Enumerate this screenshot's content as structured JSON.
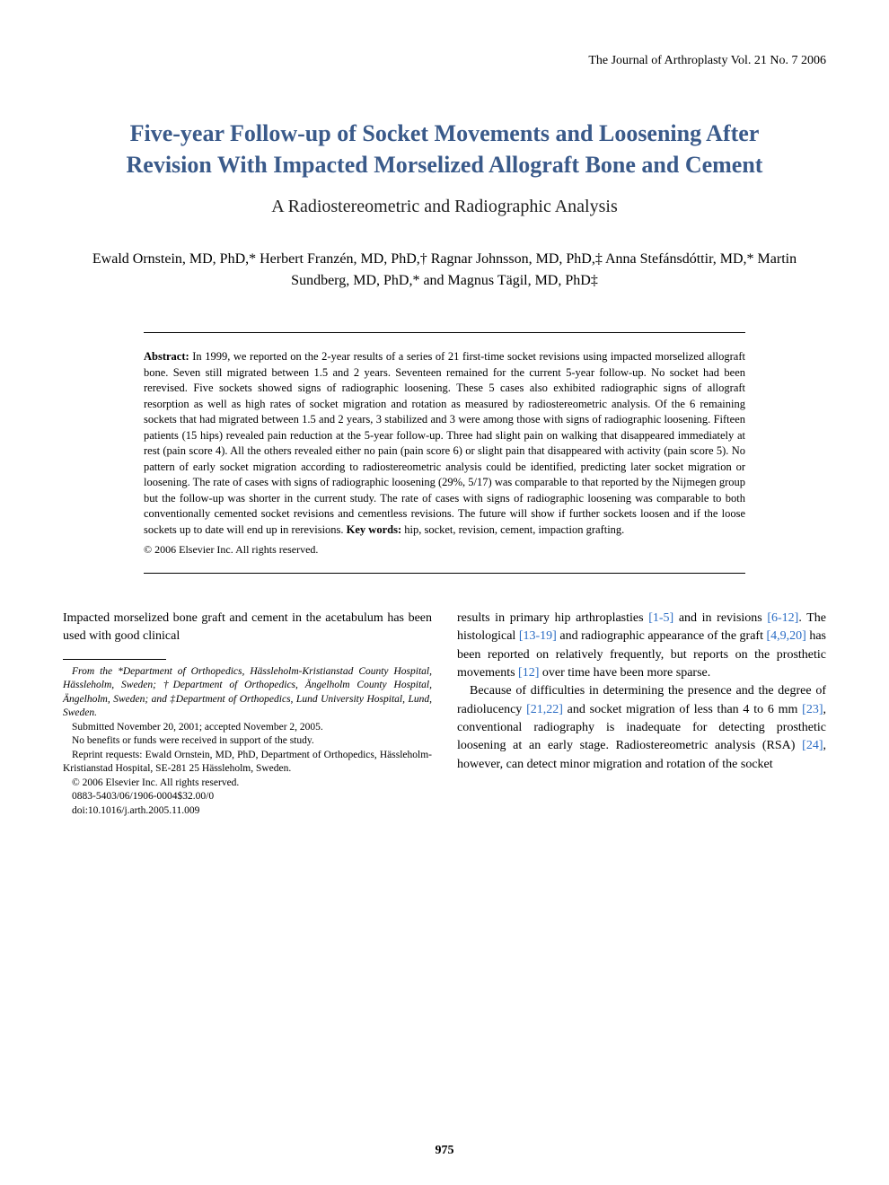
{
  "journal_header": "The Journal of Arthroplasty Vol. 21 No. 7 2006",
  "title": "Five-year Follow-up of Socket Movements and Loosening After Revision With Impacted Morselized Allograft Bone and Cement",
  "subtitle": "A Radiostereometric and Radiographic Analysis",
  "authors": "Ewald Ornstein, MD, PhD,* Herbert Franzén, MD, PhD,† Ragnar Johnsson, MD, PhD,‡ Anna Stefánsdóttir, MD,* Martin Sundberg, MD, PhD,* and Magnus Tägil, MD, PhD‡",
  "abstract_label": "Abstract:",
  "abstract_text": " In 1999, we reported on the 2-year results of a series of 21 first-time socket revisions using impacted morselized allograft bone. Seven still migrated between 1.5 and 2 years. Seventeen remained for the current 5-year follow-up. No socket had been rerevised. Five sockets showed signs of radiographic loosening. These 5 cases also exhibited radiographic signs of allograft resorption as well as high rates of socket migration and rotation as measured by radiostereometric analysis. Of the 6 remaining sockets that had migrated between 1.5 and 2 years, 3 stabilized and 3 were among those with signs of radiographic loosening. Fifteen patients (15 hips) revealed pain reduction at the 5-year follow-up. Three had slight pain on walking that disappeared immediately at rest (pain score 4). All the others revealed either no pain (pain score 6) or slight pain that disappeared with activity (pain score 5). No pattern of early socket migration according to radiostereometric analysis could be identified, predicting later socket migration or loosening. The rate of cases with signs of radiographic loosening (29%, 5/17) was comparable to that reported by the Nijmegen group but the follow-up was shorter in the current study. The rate of cases with signs of radiographic loosening was comparable to both conventionally cemented socket revisions and cementless revisions. The future will show if further sockets loosen and if the loose sockets up to date will end up in rerevisions. ",
  "keywords_label": "Key words:",
  "keywords_text": " hip, socket, revision, cement, impaction grafting.",
  "abstract_copyright": "© 2006 Elsevier Inc. All rights reserved.",
  "body": {
    "left_intro": "Impacted morselized bone graft and cement in the acetabulum has been used with good clinical",
    "right_p1_a": "results in primary hip arthroplasties ",
    "right_p1_ref1": "[1-5]",
    "right_p1_b": " and in revisions ",
    "right_p1_ref2": "[6-12]",
    "right_p1_c": ". The histological ",
    "right_p1_ref3": "[13-19]",
    "right_p1_d": " and radiographic appearance of the graft ",
    "right_p1_ref4": "[4,9,20]",
    "right_p1_e": " has been reported on relatively frequently, but reports on the prosthetic movements ",
    "right_p1_ref5": "[12]",
    "right_p1_f": " over time have been more sparse.",
    "right_p2_a": "Because of difficulties in determining the presence and the degree of radiolucency ",
    "right_p2_ref1": "[21,22]",
    "right_p2_b": " and socket migration of less than 4 to 6 mm ",
    "right_p2_ref2": "[23]",
    "right_p2_c": ", conventional radiography is inadequate for detecting prosthetic loosening at an early stage. Radiostereometric analysis (RSA) ",
    "right_p2_ref3": "[24]",
    "right_p2_d": ", however, can detect minor migration and rotation of the socket"
  },
  "footnote": {
    "from": "From the *Department of Orthopedics, Hässleholm-Kristianstad County Hospital, Hässleholm, Sweden; †Department of Orthopedics, Ängelholm County Hospital, Ängelholm, Sweden; and ‡Department of Orthopedics, Lund University Hospital, Lund, Sweden.",
    "submitted": "Submitted November 20, 2001; accepted November 2, 2005.",
    "benefits": "No benefits or funds were received in support of the study.",
    "reprint": "Reprint requests: Ewald Ornstein, MD, PhD, Department of Orthopedics, Hässleholm-Kristianstad Hospital, SE-281 25 Hässleholm, Sweden.",
    "copyright": "© 2006 Elsevier Inc. All rights reserved.",
    "issn": "0883-5403/06/1906-0004$32.00/0",
    "doi": "doi:10.1016/j.arth.2005.11.009"
  },
  "page_number": "975",
  "colors": {
    "title": "#3a5a8a",
    "ref_link": "#2a6cc4",
    "text": "#000000",
    "background": "#ffffff"
  }
}
